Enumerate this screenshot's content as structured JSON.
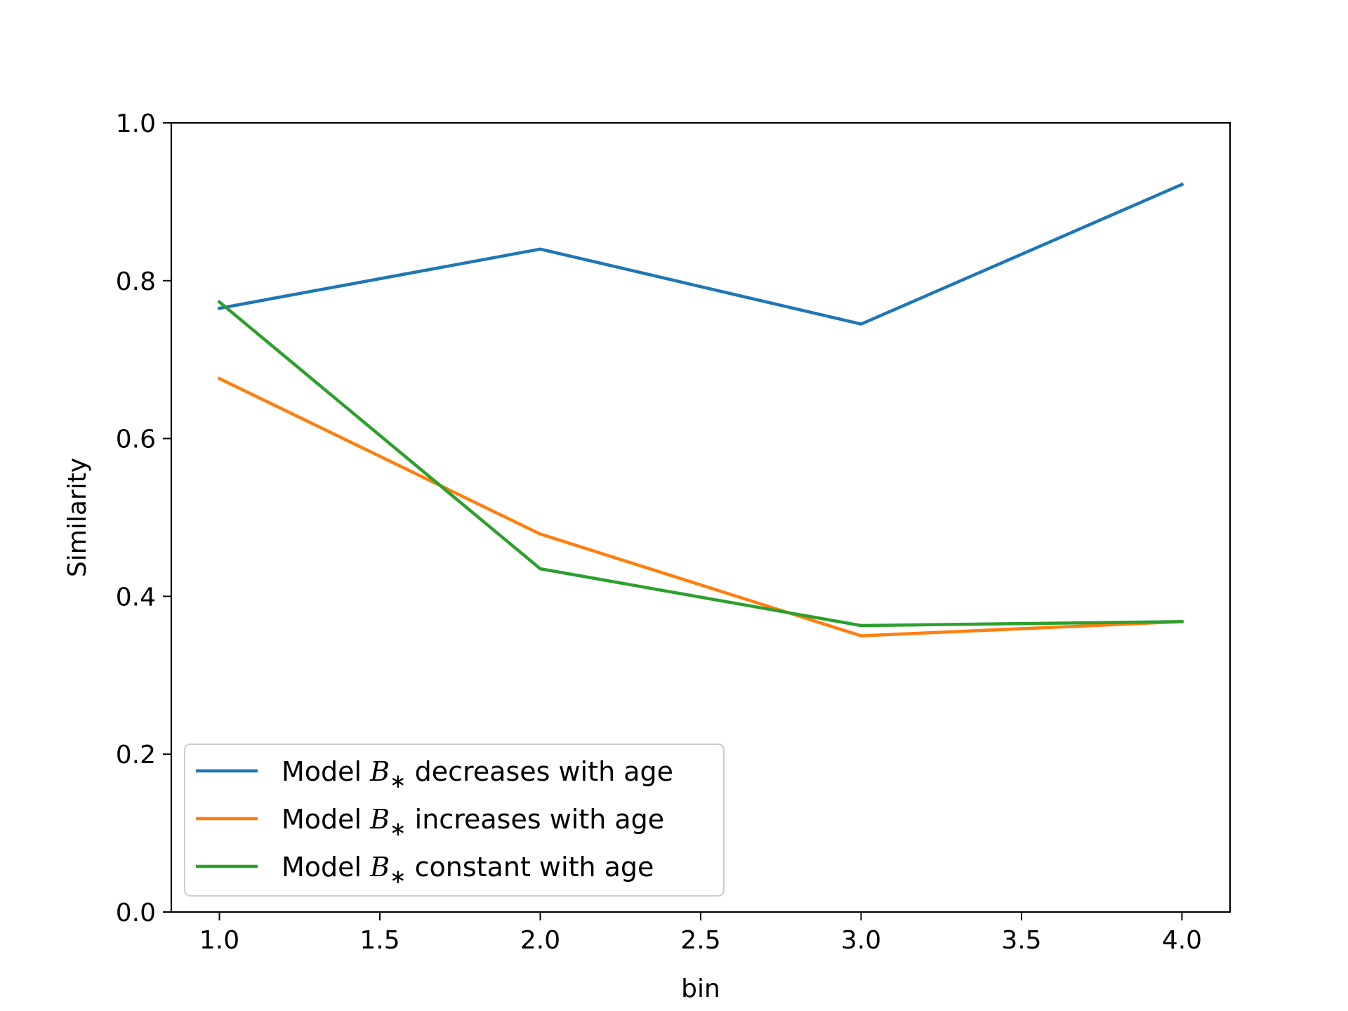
{
  "chart_data": {
    "type": "line",
    "title": "",
    "xlabel": "bin",
    "ylabel": "Similarity",
    "xlim": [
      0.85,
      4.15
    ],
    "ylim": [
      0.0,
      1.0
    ],
    "x_ticks": [
      1.0,
      1.5,
      2.0,
      2.5,
      3.0,
      3.5,
      4.0
    ],
    "x_tick_labels": [
      "1.0",
      "1.5",
      "2.0",
      "2.5",
      "3.0",
      "3.5",
      "4.0"
    ],
    "y_ticks": [
      0.0,
      0.2,
      0.4,
      0.6,
      0.8,
      1.0
    ],
    "y_tick_labels": [
      "0.0",
      "0.2",
      "0.4",
      "0.6",
      "0.8",
      "1.0"
    ],
    "grid": false,
    "legend_position": "lower-left",
    "series": [
      {
        "key": "decreases",
        "legend_prefix": "Model ",
        "legend_symbol": "B",
        "legend_subscript": "∗",
        "legend_suffix": " decreases with age",
        "color": "#1f77b4",
        "x": [
          1.0,
          2.0,
          3.0,
          4.0
        ],
        "y": [
          0.765,
          0.84,
          0.745,
          0.922
        ]
      },
      {
        "key": "increases",
        "legend_prefix": "Model ",
        "legend_symbol": "B",
        "legend_subscript": "∗",
        "legend_suffix": " increases with age",
        "color": "#ff7f0e",
        "x": [
          1.0,
          2.0,
          3.0,
          4.0
        ],
        "y": [
          0.676,
          0.479,
          0.35,
          0.368
        ]
      },
      {
        "key": "constant",
        "legend_prefix": "Model ",
        "legend_symbol": "B",
        "legend_subscript": "∗",
        "legend_suffix": " constant with age",
        "color": "#2ca02c",
        "x": [
          1.0,
          2.0,
          3.0,
          4.0
        ],
        "y": [
          0.773,
          0.435,
          0.363,
          0.368
        ]
      }
    ]
  }
}
